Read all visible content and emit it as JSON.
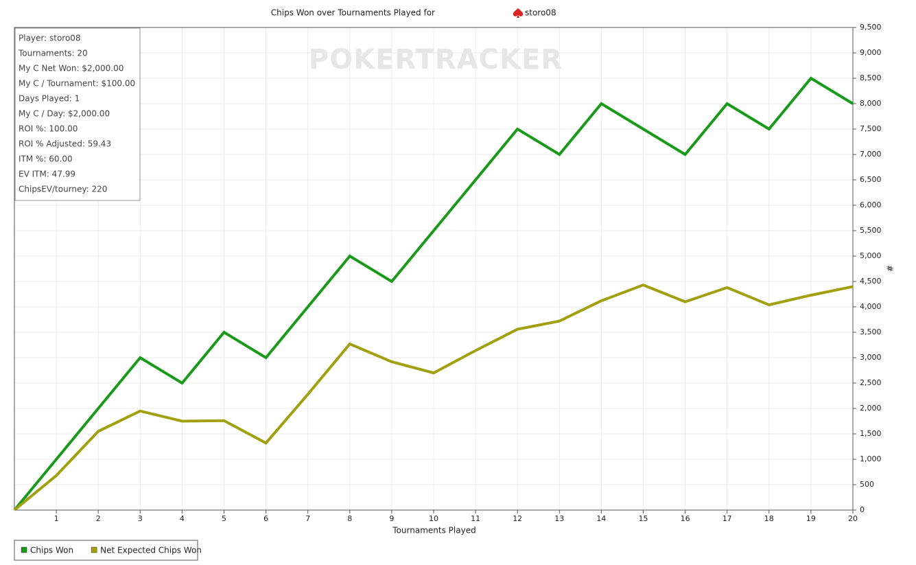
{
  "chart_data": {
    "type": "line",
    "title": "Chips Won over Tournaments Played for",
    "title_player": "storo08",
    "watermark": "POKERTRACKER",
    "x_label": "Tournaments Played",
    "y_label": "#",
    "x": [
      0,
      1,
      2,
      3,
      4,
      5,
      6,
      7,
      8,
      9,
      10,
      11,
      12,
      13,
      14,
      15,
      16,
      17,
      18,
      19,
      20
    ],
    "xlim": [
      0,
      20
    ],
    "xticks": [
      1,
      2,
      3,
      4,
      5,
      6,
      7,
      8,
      9,
      10,
      11,
      12,
      13,
      14,
      15,
      16,
      17,
      18,
      19,
      20
    ],
    "ylim": [
      0,
      9500
    ],
    "yticks": [
      0,
      500,
      {
        "value": 1000,
        "label": "1,000"
      },
      {
        "value": 1500,
        "label": "1,500"
      },
      {
        "value": 2000,
        "label": "2,000"
      },
      {
        "value": 2500,
        "label": "2,500"
      },
      {
        "value": 3000,
        "label": "3,000"
      },
      {
        "value": 3500,
        "label": "3,500"
      },
      {
        "value": 4000,
        "label": "4,000"
      },
      {
        "value": 4500,
        "label": "4,500"
      },
      {
        "value": 5000,
        "label": "5,000"
      },
      {
        "value": 5500,
        "label": "5,500"
      },
      {
        "value": 6000,
        "label": "6,000"
      },
      {
        "value": 6500,
        "label": "6,500"
      },
      {
        "value": 7000,
        "label": "7,000"
      },
      {
        "value": 7500,
        "label": "7,500"
      },
      {
        "value": 8000,
        "label": "8,000"
      },
      {
        "value": 8500,
        "label": "8,500"
      },
      {
        "value": 9000,
        "label": "9,000"
      },
      {
        "value": 9500,
        "label": "9,500"
      }
    ],
    "grid": true,
    "legend_position": "bottom-left",
    "series": [
      {
        "name": "Chips Won",
        "color": "#1a9a1a",
        "values": [
          0,
          1000,
          2000,
          3000,
          2500,
          3500,
          3000,
          4000,
          5000,
          4500,
          5500,
          6500,
          7500,
          7000,
          8000,
          7500,
          7000,
          8000,
          7500,
          8500,
          8000
        ]
      },
      {
        "name": "Net Expected Chips Won",
        "color": "#a0a010",
        "values": [
          0,
          680,
          1550,
          1950,
          1750,
          1760,
          1320,
          2280,
          3270,
          2920,
          2700,
          3140,
          3560,
          3720,
          4120,
          4430,
          4100,
          4380,
          4040,
          4230,
          4400
        ]
      }
    ],
    "annotations": [
      "Player: storo08",
      "Tournaments: 20",
      "My C Net Won: $2,000.00",
      "My C / Tournament: $100.00",
      "Days Played: 1",
      "My C / Day: $2,000.00",
      "ROI %: 100.00",
      "ROI % Adjusted: 59.43",
      "ITM %: 60.00",
      "EV ITM: 47.99",
      "ChipsEV/tourney: 220"
    ]
  }
}
